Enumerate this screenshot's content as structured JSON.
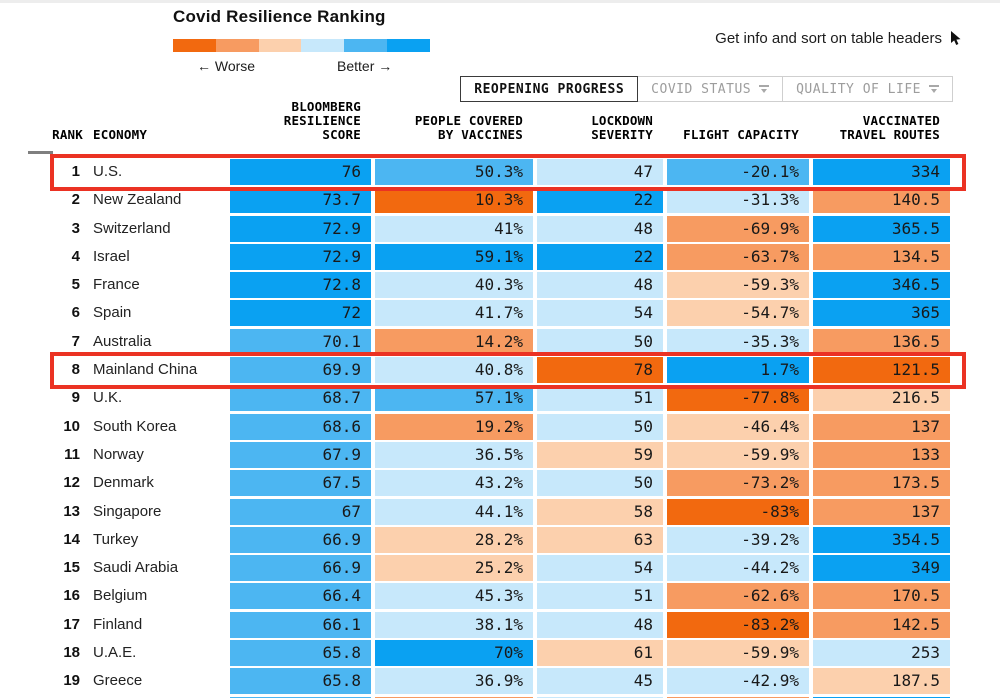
{
  "legend": {
    "title": "Covid Resilience Ranking",
    "worse_label": "← Worse",
    "better_label": "Better →",
    "scale_colors": [
      "#f2690f",
      "#f79b61",
      "#fcd0ad",
      "#c7e8fb",
      "#4cb6f2",
      "#0aa1f2"
    ]
  },
  "toolbar": {
    "hint": "Get info and sort on table headers",
    "tabs": [
      {
        "label": "REOPENING PROGRESS",
        "active": true,
        "dropdown": false
      },
      {
        "label": "COVID STATUS",
        "active": false,
        "dropdown": true
      },
      {
        "label": "QUALITY OF LIFE",
        "active": false,
        "dropdown": true
      }
    ]
  },
  "table": {
    "headers": {
      "rank": "RANK",
      "economy": "ECONOMY",
      "score": [
        "BLOOMBERG",
        "RESILIENCE",
        "SCORE"
      ],
      "vaccines": [
        "PEOPLE COVERED",
        "BY VACCINES"
      ],
      "lockdown": [
        "LOCKDOWN",
        "SEVERITY"
      ],
      "flight": [
        "FLIGHT CAPACITY"
      ],
      "routes": [
        "VACCINATED",
        "TRAVEL ROUTES"
      ]
    },
    "palette": {
      "o3": "#f2690f",
      "o2": "#f79b61",
      "o1": "#fcd0ad",
      "b1": "#c7e8fb",
      "b2": "#4cb6f2",
      "b3": "#0aa1f2"
    },
    "highlight_color": "#eb3223",
    "rows": [
      {
        "rank": "1",
        "economy": "U.S.",
        "score": "76",
        "score_c": "b3",
        "vaccines": "50.3%",
        "vaccines_c": "b2",
        "lockdown": "47",
        "lockdown_c": "b1",
        "flight": "-20.1%",
        "flight_c": "b2",
        "routes": "334",
        "routes_c": "b3",
        "highlighted": true
      },
      {
        "rank": "2",
        "economy": "New Zealand",
        "score": "73.7",
        "score_c": "b3",
        "vaccines": "10.3%",
        "vaccines_c": "o3",
        "lockdown": "22",
        "lockdown_c": "b3",
        "flight": "-31.3%",
        "flight_c": "b1",
        "routes": "140.5",
        "routes_c": "o2",
        "highlighted": false
      },
      {
        "rank": "3",
        "economy": "Switzerland",
        "score": "72.9",
        "score_c": "b3",
        "vaccines": "41%",
        "vaccines_c": "b1",
        "lockdown": "48",
        "lockdown_c": "b1",
        "flight": "-69.9%",
        "flight_c": "o2",
        "routes": "365.5",
        "routes_c": "b3",
        "highlighted": false
      },
      {
        "rank": "4",
        "economy": "Israel",
        "score": "72.9",
        "score_c": "b3",
        "vaccines": "59.1%",
        "vaccines_c": "b3",
        "lockdown": "22",
        "lockdown_c": "b3",
        "flight": "-63.7%",
        "flight_c": "o2",
        "routes": "134.5",
        "routes_c": "o2",
        "highlighted": false
      },
      {
        "rank": "5",
        "economy": "France",
        "score": "72.8",
        "score_c": "b3",
        "vaccines": "40.3%",
        "vaccines_c": "b1",
        "lockdown": "48",
        "lockdown_c": "b1",
        "flight": "-59.3%",
        "flight_c": "o1",
        "routes": "346.5",
        "routes_c": "b3",
        "highlighted": false
      },
      {
        "rank": "6",
        "economy": "Spain",
        "score": "72",
        "score_c": "b3",
        "vaccines": "41.7%",
        "vaccines_c": "b1",
        "lockdown": "54",
        "lockdown_c": "b1",
        "flight": "-54.7%",
        "flight_c": "o1",
        "routes": "365",
        "routes_c": "b3",
        "highlighted": false
      },
      {
        "rank": "7",
        "economy": "Australia",
        "score": "70.1",
        "score_c": "b2",
        "vaccines": "14.2%",
        "vaccines_c": "o2",
        "lockdown": "50",
        "lockdown_c": "b1",
        "flight": "-35.3%",
        "flight_c": "b1",
        "routes": "136.5",
        "routes_c": "o2",
        "highlighted": false
      },
      {
        "rank": "8",
        "economy": "Mainland China",
        "score": "69.9",
        "score_c": "b2",
        "vaccines": "40.8%",
        "vaccines_c": "b1",
        "lockdown": "78",
        "lockdown_c": "o3",
        "flight": "1.7%",
        "flight_c": "b3",
        "routes": "121.5",
        "routes_c": "o3",
        "highlighted": true
      },
      {
        "rank": "9",
        "economy": "U.K.",
        "score": "68.7",
        "score_c": "b2",
        "vaccines": "57.1%",
        "vaccines_c": "b2",
        "lockdown": "51",
        "lockdown_c": "b1",
        "flight": "-77.8%",
        "flight_c": "o3",
        "routes": "216.5",
        "routes_c": "o1",
        "highlighted": false
      },
      {
        "rank": "10",
        "economy": "South Korea",
        "score": "68.6",
        "score_c": "b2",
        "vaccines": "19.2%",
        "vaccines_c": "o2",
        "lockdown": "50",
        "lockdown_c": "b1",
        "flight": "-46.4%",
        "flight_c": "o1",
        "routes": "137",
        "routes_c": "o2",
        "highlighted": false
      },
      {
        "rank": "11",
        "economy": "Norway",
        "score": "67.9",
        "score_c": "b2",
        "vaccines": "36.5%",
        "vaccines_c": "b1",
        "lockdown": "59",
        "lockdown_c": "o1",
        "flight": "-59.9%",
        "flight_c": "o1",
        "routes": "133",
        "routes_c": "o2",
        "highlighted": false
      },
      {
        "rank": "12",
        "economy": "Denmark",
        "score": "67.5",
        "score_c": "b2",
        "vaccines": "43.2%",
        "vaccines_c": "b1",
        "lockdown": "50",
        "lockdown_c": "b1",
        "flight": "-73.2%",
        "flight_c": "o2",
        "routes": "173.5",
        "routes_c": "o2",
        "highlighted": false
      },
      {
        "rank": "13",
        "economy": "Singapore",
        "score": "67",
        "score_c": "b2",
        "vaccines": "44.1%",
        "vaccines_c": "b1",
        "lockdown": "58",
        "lockdown_c": "o1",
        "flight": "-83%",
        "flight_c": "o3",
        "routes": "137",
        "routes_c": "o2",
        "highlighted": false
      },
      {
        "rank": "14",
        "economy": "Turkey",
        "score": "66.9",
        "score_c": "b2",
        "vaccines": "28.2%",
        "vaccines_c": "o1",
        "lockdown": "63",
        "lockdown_c": "o1",
        "flight": "-39.2%",
        "flight_c": "b1",
        "routes": "354.5",
        "routes_c": "b3",
        "highlighted": false
      },
      {
        "rank": "15",
        "economy": "Saudi Arabia",
        "score": "66.9",
        "score_c": "b2",
        "vaccines": "25.2%",
        "vaccines_c": "o1",
        "lockdown": "54",
        "lockdown_c": "b1",
        "flight": "-44.2%",
        "flight_c": "b1",
        "routes": "349",
        "routes_c": "b3",
        "highlighted": false
      },
      {
        "rank": "16",
        "economy": "Belgium",
        "score": "66.4",
        "score_c": "b2",
        "vaccines": "45.3%",
        "vaccines_c": "b1",
        "lockdown": "51",
        "lockdown_c": "b1",
        "flight": "-62.6%",
        "flight_c": "o2",
        "routes": "170.5",
        "routes_c": "o2",
        "highlighted": false
      },
      {
        "rank": "17",
        "economy": "Finland",
        "score": "66.1",
        "score_c": "b2",
        "vaccines": "38.1%",
        "vaccines_c": "b1",
        "lockdown": "48",
        "lockdown_c": "b1",
        "flight": "-83.2%",
        "flight_c": "o3",
        "routes": "142.5",
        "routes_c": "o2",
        "highlighted": false
      },
      {
        "rank": "18",
        "economy": "U.A.E.",
        "score": "65.8",
        "score_c": "b2",
        "vaccines": "70%",
        "vaccines_c": "b3",
        "lockdown": "61",
        "lockdown_c": "o1",
        "flight": "-59.9%",
        "flight_c": "o1",
        "routes": "253",
        "routes_c": "b1",
        "highlighted": false
      },
      {
        "rank": "19",
        "economy": "Greece",
        "score": "65.8",
        "score_c": "b2",
        "vaccines": "36.9%",
        "vaccines_c": "b1",
        "lockdown": "45",
        "lockdown_c": "b1",
        "flight": "-42.9%",
        "flight_c": "b1",
        "routes": "187.5",
        "routes_c": "o1",
        "highlighted": false
      }
    ],
    "partial_row_colors": {
      "score": "b2",
      "vaccines": "o2",
      "lockdown": "b1",
      "flight": "o2",
      "routes": "b3"
    }
  }
}
